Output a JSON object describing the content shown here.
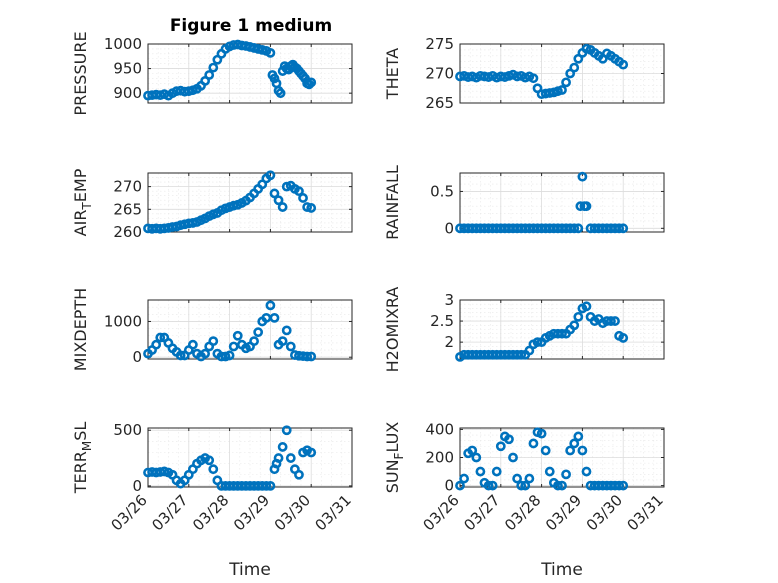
{
  "figure_title": "Figure 1 medium",
  "colors": {
    "marker": "#0072BD",
    "axis": "#262626"
  },
  "chart_data": [
    {
      "type": "scatter",
      "title": "Figure 1 medium",
      "ylabel": "PRESSURE",
      "xlabel": "",
      "x_axis": "date",
      "xlim": [
        "03/26",
        "03/31"
      ],
      "ylim": [
        880,
        1000
      ],
      "yticks": [
        900,
        950,
        1000
      ],
      "xticks": [
        "03/26",
        "03/27",
        "03/28",
        "03/29",
        "03/30",
        "03/31"
      ],
      "x": [
        0,
        0.1,
        0.2,
        0.3,
        0.4,
        0.5,
        0.6,
        0.7,
        0.8,
        0.9,
        1.0,
        1.1,
        1.2,
        1.3,
        1.4,
        1.5,
        1.6,
        1.7,
        1.8,
        1.9,
        2.0,
        2.1,
        2.2,
        2.3,
        2.4,
        2.5,
        2.6,
        2.7,
        2.8,
        2.9,
        3.0,
        3.05,
        3.1,
        3.15,
        3.2,
        3.25,
        3.3,
        3.35,
        3.4,
        3.45,
        3.5,
        3.55,
        3.6,
        3.65,
        3.7,
        3.75,
        3.8,
        3.85,
        3.9,
        3.95,
        4.0
      ],
      "values": [
        895,
        896,
        897,
        896,
        898,
        895,
        900,
        904,
        905,
        903,
        904,
        906,
        909,
        915,
        925,
        937,
        952,
        968,
        980,
        990,
        995,
        998,
        999,
        997,
        996,
        994,
        992,
        990,
        988,
        986,
        982,
        937,
        930,
        920,
        905,
        900,
        945,
        955,
        950,
        948,
        955,
        958,
        953,
        950,
        945,
        940,
        935,
        930,
        920,
        918,
        922
      ],
      "grid": true,
      "minor_grid": true
    },
    {
      "type": "scatter",
      "ylabel": "THETA",
      "x_axis": "date",
      "xlim": [
        "03/26",
        "03/31"
      ],
      "ylim": [
        265,
        275
      ],
      "yticks": [
        265,
        270,
        275
      ],
      "xticks": [
        "03/26",
        "03/27",
        "03/28",
        "03/29",
        "03/30",
        "03/31"
      ],
      "x": [
        0,
        0.1,
        0.2,
        0.3,
        0.4,
        0.5,
        0.6,
        0.7,
        0.8,
        0.9,
        1.0,
        1.1,
        1.2,
        1.3,
        1.4,
        1.5,
        1.6,
        1.7,
        1.8,
        1.9,
        2.0,
        2.1,
        2.2,
        2.3,
        2.4,
        2.5,
        2.6,
        2.7,
        2.8,
        2.9,
        3.0,
        3.1,
        3.2,
        3.3,
        3.4,
        3.5,
        3.6,
        3.7,
        3.8,
        3.9,
        4.0
      ],
      "values": [
        269.5,
        269.6,
        269.4,
        269.5,
        269.3,
        269.6,
        269.5,
        269.4,
        269.6,
        269.3,
        269.5,
        269.4,
        269.6,
        269.8,
        269.5,
        269.6,
        269.3,
        269.5,
        269.2,
        267.5,
        266.5,
        266.6,
        266.7,
        266.8,
        267.0,
        267.2,
        268.5,
        270.0,
        271.0,
        272.5,
        273.5,
        274.2,
        274.0,
        273.5,
        273.0,
        272.5,
        273.4,
        273.0,
        272.5,
        272.0,
        271.5
      ],
      "grid": true,
      "minor_grid": true
    },
    {
      "type": "scatter",
      "ylabel": "AIR_TEMP",
      "x_axis": "date",
      "xlim": [
        "03/26",
        "03/31"
      ],
      "ylim": [
        260,
        273
      ],
      "yticks": [
        260,
        265,
        270
      ],
      "xticks": [
        "03/26",
        "03/27",
        "03/28",
        "03/29",
        "03/30",
        "03/31"
      ],
      "x": [
        0,
        0.1,
        0.2,
        0.3,
        0.4,
        0.5,
        0.6,
        0.7,
        0.8,
        0.9,
        1.0,
        1.1,
        1.2,
        1.3,
        1.4,
        1.5,
        1.6,
        1.7,
        1.8,
        1.9,
        2.0,
        2.1,
        2.2,
        2.3,
        2.4,
        2.5,
        2.6,
        2.7,
        2.8,
        2.9,
        3.0,
        3.1,
        3.2,
        3.3,
        3.4,
        3.5,
        3.6,
        3.7,
        3.8,
        3.9,
        4.0
      ],
      "values": [
        260.8,
        260.7,
        260.8,
        260.7,
        260.8,
        260.9,
        261.1,
        261.2,
        261.5,
        261.7,
        261.9,
        262.0,
        262.2,
        262.6,
        263.0,
        263.5,
        263.9,
        264.2,
        264.8,
        265.2,
        265.5,
        265.8,
        266.0,
        266.4,
        266.9,
        267.6,
        268.5,
        269.5,
        270.5,
        271.8,
        272.5,
        268.5,
        267.0,
        265.5,
        270.0,
        270.2,
        269.5,
        269.0,
        267.5,
        265.5,
        265.3
      ],
      "grid": true,
      "minor_grid": true
    },
    {
      "type": "scatter",
      "ylabel": "RAINFALL",
      "x_axis": "date",
      "xlim": [
        "03/26",
        "03/31"
      ],
      "ylim": [
        -0.05,
        0.75
      ],
      "yticks": [
        0,
        0.5
      ],
      "xticks": [
        "03/26",
        "03/27",
        "03/28",
        "03/29",
        "03/30",
        "03/31"
      ],
      "x": [
        0,
        0.1,
        0.2,
        0.3,
        0.4,
        0.5,
        0.6,
        0.7,
        0.8,
        0.9,
        1.0,
        1.1,
        1.2,
        1.3,
        1.4,
        1.5,
        1.6,
        1.7,
        1.8,
        1.9,
        2.0,
        2.1,
        2.2,
        2.3,
        2.4,
        2.5,
        2.6,
        2.7,
        2.8,
        2.9,
        2.95,
        3.0,
        3.05,
        3.1,
        3.2,
        3.3,
        3.4,
        3.5,
        3.6,
        3.7,
        3.8,
        3.9,
        4.0
      ],
      "values": [
        0,
        0,
        0,
        0,
        0,
        0,
        0,
        0,
        0,
        0,
        0,
        0,
        0,
        0,
        0,
        0,
        0,
        0,
        0,
        0,
        0,
        0,
        0,
        0,
        0,
        0,
        0,
        0,
        0,
        0,
        0.3,
        0.7,
        0.3,
        0.3,
        0,
        0,
        0,
        0,
        0,
        0,
        0,
        0,
        0
      ],
      "grid": true,
      "minor_grid": true
    },
    {
      "type": "scatter",
      "ylabel": "MIXDEPTH",
      "x_axis": "date",
      "xlim": [
        "03/26",
        "03/31"
      ],
      "ylim": [
        -50,
        1600
      ],
      "yticks": [
        0,
        1000
      ],
      "xticks": [
        "03/26",
        "03/27",
        "03/28",
        "03/29",
        "03/30",
        "03/31"
      ],
      "x": [
        0,
        0.1,
        0.2,
        0.3,
        0.4,
        0.5,
        0.6,
        0.7,
        0.8,
        0.9,
        1.0,
        1.1,
        1.2,
        1.3,
        1.4,
        1.5,
        1.6,
        1.7,
        1.8,
        1.9,
        2.0,
        2.1,
        2.2,
        2.3,
        2.4,
        2.5,
        2.6,
        2.7,
        2.8,
        2.9,
        3.0,
        3.1,
        3.2,
        3.3,
        3.4,
        3.5,
        3.6,
        3.7,
        3.8,
        3.9,
        4.0
      ],
      "values": [
        100,
        200,
        350,
        550,
        550,
        400,
        250,
        150,
        50,
        50,
        200,
        350,
        100,
        20,
        100,
        300,
        450,
        100,
        20,
        20,
        50,
        300,
        600,
        350,
        250,
        300,
        450,
        700,
        1000,
        1100,
        1450,
        1100,
        350,
        450,
        750,
        300,
        60,
        40,
        30,
        20,
        20
      ],
      "grid": true,
      "minor_grid": true
    },
    {
      "type": "scatter",
      "ylabel": "H2OMIXRA",
      "x_axis": "date",
      "xlim": [
        "03/26",
        "03/31"
      ],
      "ylim": [
        1.6,
        3.0
      ],
      "yticks": [
        2,
        2.5,
        3
      ],
      "xticks": [
        "03/26",
        "03/27",
        "03/28",
        "03/29",
        "03/30",
        "03/31"
      ],
      "x": [
        0,
        0.1,
        0.2,
        0.3,
        0.4,
        0.5,
        0.6,
        0.7,
        0.8,
        0.9,
        1.0,
        1.1,
        1.2,
        1.3,
        1.4,
        1.5,
        1.6,
        1.7,
        1.8,
        1.9,
        2.0,
        2.1,
        2.2,
        2.3,
        2.4,
        2.5,
        2.6,
        2.7,
        2.8,
        2.9,
        3.0,
        3.1,
        3.2,
        3.3,
        3.4,
        3.5,
        3.6,
        3.7,
        3.8,
        3.9,
        4.0
      ],
      "values": [
        1.65,
        1.7,
        1.7,
        1.7,
        1.7,
        1.7,
        1.7,
        1.7,
        1.7,
        1.7,
        1.7,
        1.7,
        1.7,
        1.7,
        1.7,
        1.7,
        1.7,
        1.8,
        1.95,
        2.0,
        2.0,
        2.1,
        2.15,
        2.2,
        2.2,
        2.2,
        2.2,
        2.3,
        2.4,
        2.6,
        2.8,
        2.85,
        2.6,
        2.5,
        2.55,
        2.45,
        2.5,
        2.5,
        2.5,
        2.15,
        2.1
      ],
      "grid": true,
      "minor_grid": true
    },
    {
      "type": "scatter",
      "ylabel": "TERR_MSL",
      "xlabel": "Time",
      "x_axis": "date",
      "xlim": [
        "03/26",
        "03/31"
      ],
      "ylim": [
        -10,
        520
      ],
      "yticks": [
        0,
        500
      ],
      "xticks": [
        "03/26",
        "03/27",
        "03/28",
        "03/29",
        "03/30",
        "03/31"
      ],
      "x": [
        0,
        0.1,
        0.2,
        0.3,
        0.4,
        0.5,
        0.6,
        0.7,
        0.8,
        0.9,
        1.0,
        1.1,
        1.2,
        1.3,
        1.4,
        1.5,
        1.6,
        1.7,
        1.8,
        1.9,
        2.0,
        2.1,
        2.2,
        2.3,
        2.4,
        2.5,
        2.6,
        2.7,
        2.8,
        2.9,
        3.0,
        3.1,
        3.15,
        3.2,
        3.3,
        3.4,
        3.5,
        3.6,
        3.7,
        3.8,
        3.9,
        4.0
      ],
      "values": [
        120,
        125,
        120,
        125,
        130,
        120,
        100,
        50,
        20,
        50,
        100,
        150,
        200,
        230,
        250,
        230,
        150,
        50,
        0,
        0,
        0,
        0,
        0,
        0,
        0,
        0,
        0,
        0,
        0,
        0,
        0,
        150,
        200,
        250,
        350,
        500,
        250,
        150,
        100,
        300,
        320,
        300
      ],
      "grid": true,
      "minor_grid": true
    },
    {
      "type": "scatter",
      "ylabel": "SUN_FLUX",
      "xlabel": "Time",
      "x_axis": "date",
      "xlim": [
        "03/26",
        "03/31"
      ],
      "ylim": [
        -10,
        410
      ],
      "yticks": [
        0,
        200,
        400
      ],
      "xticks": [
        "03/26",
        "03/27",
        "03/28",
        "03/29",
        "03/30",
        "03/31"
      ],
      "x": [
        0,
        0.1,
        0.2,
        0.3,
        0.4,
        0.5,
        0.6,
        0.7,
        0.8,
        0.9,
        1.0,
        1.1,
        1.2,
        1.3,
        1.4,
        1.5,
        1.6,
        1.7,
        1.8,
        1.9,
        2.0,
        2.1,
        2.2,
        2.3,
        2.4,
        2.5,
        2.6,
        2.7,
        2.8,
        2.9,
        3.0,
        3.1,
        3.2,
        3.3,
        3.4,
        3.5,
        3.6,
        3.7,
        3.8,
        3.9,
        4.0
      ],
      "values": [
        0,
        50,
        230,
        250,
        200,
        100,
        20,
        0,
        0,
        100,
        280,
        350,
        330,
        200,
        50,
        0,
        0,
        50,
        300,
        380,
        370,
        250,
        100,
        20,
        0,
        0,
        80,
        250,
        300,
        350,
        250,
        100,
        0,
        0,
        0,
        0,
        0,
        0,
        0,
        0,
        0
      ],
      "grid": true,
      "minor_grid": true
    }
  ]
}
